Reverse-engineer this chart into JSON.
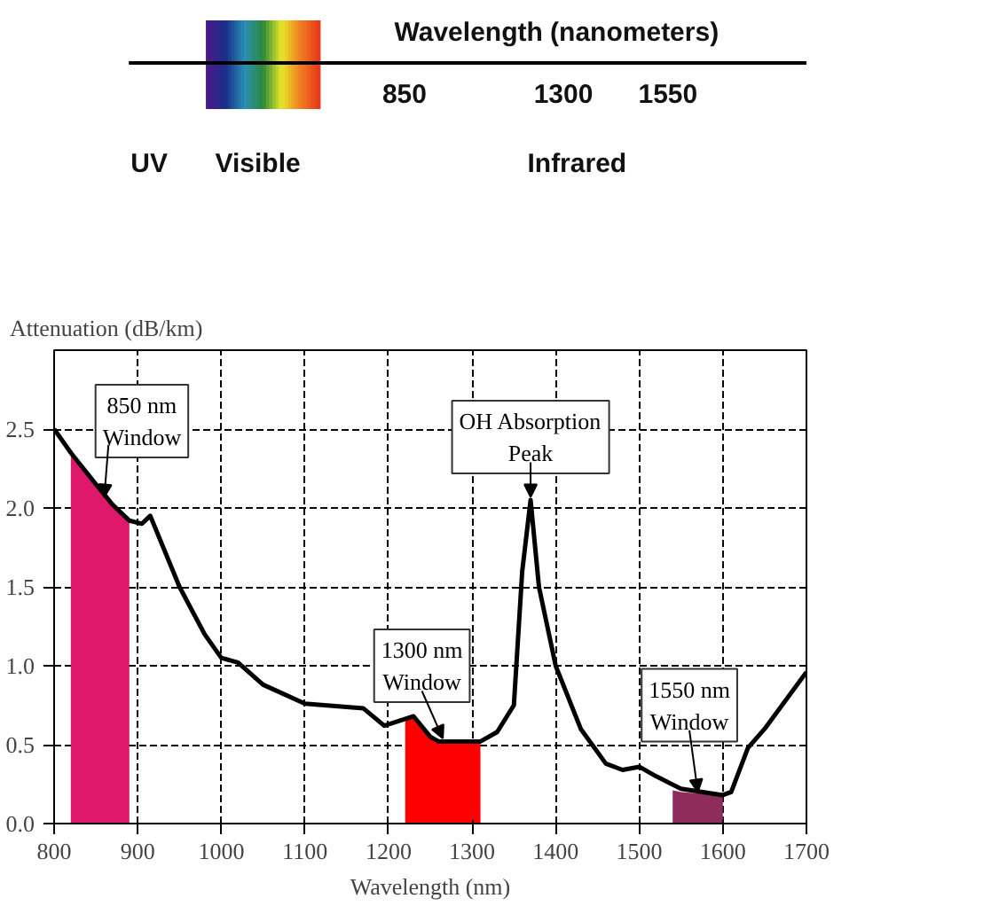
{
  "chart_data": [
    {
      "type": "other",
      "annotations": [
        "Wavelength (nanometers)",
        "850",
        "1300",
        "1550",
        "UV",
        "Visible",
        "Infrared"
      ]
    },
    {
      "type": "line",
      "xlabel": "Wavelength (nm)",
      "ylabel": "Attenuation (dB/km)",
      "xlim": [
        800,
        1700
      ],
      "xticks": [
        800,
        900,
        1000,
        1100,
        1200,
        1300,
        1400,
        1500,
        1600,
        1700
      ],
      "ylim": [
        0,
        3.0
      ],
      "yticks": [
        {
          "value": 0,
          "label": "0.0"
        },
        {
          "value": 0.5,
          "label": "0.5"
        },
        {
          "value": 1.0,
          "label": "1.0"
        },
        {
          "value": 1.5,
          "label": "1.5"
        },
        {
          "value": 2.0,
          "label": "2.0"
        },
        {
          "value": 2.5,
          "label": "2.5"
        }
      ],
      "grid": true,
      "marker": "none",
      "series": [
        {
          "type": "area",
          "color": "#e0186c",
          "x": [
            820,
            850,
            870,
            890
          ],
          "values": [
            2.35,
            2.15,
            2.02,
            1.92
          ]
        },
        {
          "type": "area",
          "color": "#ff0000",
          "x": [
            1220,
            1230,
            1250,
            1260,
            1310
          ],
          "values": [
            0.66,
            0.68,
            0.55,
            0.52,
            0.52
          ]
        },
        {
          "type": "area",
          "color": "#8e2c5c",
          "x": [
            1540,
            1550,
            1600
          ],
          "values": [
            0.21,
            0.2,
            0.18
          ]
        },
        {
          "type": "line",
          "color": "#000000",
          "x": [
            800,
            820,
            850,
            870,
            890,
            905,
            915,
            950,
            980,
            1000,
            1020,
            1050,
            1100,
            1170,
            1195,
            1230,
            1250,
            1260,
            1310,
            1330,
            1350,
            1360,
            1370,
            1380,
            1400,
            1430,
            1460,
            1480,
            1500,
            1520,
            1550,
            1600,
            1610,
            1630,
            1650,
            1700
          ],
          "values": [
            2.5,
            2.35,
            2.15,
            2.02,
            1.92,
            1.9,
            1.95,
            1.5,
            1.2,
            1.05,
            1.02,
            0.88,
            0.76,
            0.73,
            0.62,
            0.68,
            0.55,
            0.52,
            0.52,
            0.58,
            0.75,
            1.6,
            2.05,
            1.5,
            1.0,
            0.6,
            0.38,
            0.34,
            0.36,
            0.3,
            0.22,
            0.18,
            0.2,
            0.48,
            0.6,
            0.96
          ]
        }
      ],
      "annotations": [
        {
          "text": "850 nm\nWindow",
          "x": 860,
          "y": 2.05
        },
        {
          "text": "OH Absorption\nPeak",
          "x": 1370,
          "y": 2.05
        },
        {
          "text": "1300 nm\nWindow",
          "x": 1265,
          "y": 0.52
        },
        {
          "text": "1550 nm\nWindow",
          "x": 1570,
          "y": 0.18
        }
      ]
    }
  ]
}
